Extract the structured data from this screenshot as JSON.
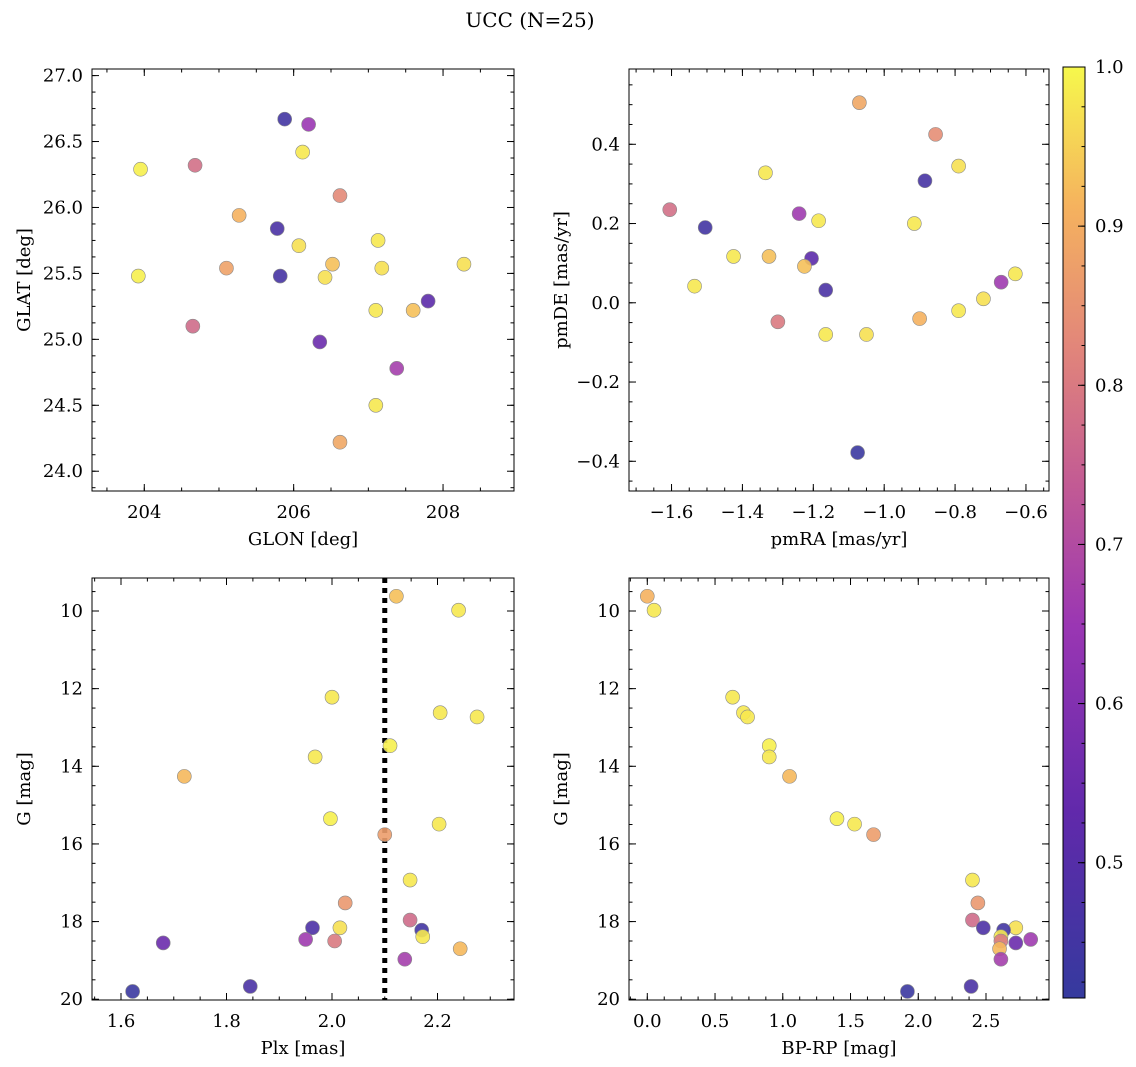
{
  "title": "UCC (N=25)",
  "colorbar": {
    "ticks": [
      0.5,
      0.6,
      0.7,
      0.8,
      0.9,
      1.0
    ],
    "ticklabels": [
      "0.5",
      "0.6",
      "0.7",
      "0.8",
      "0.9",
      "1.0"
    ],
    "range": [
      0.415,
      1.0
    ],
    "colormap": "plasma"
  },
  "chart_data": [
    {
      "type": "scatter",
      "xlabel": "GLON [deg]",
      "ylabel": "GLAT [deg]",
      "xlim": [
        203.3,
        208.95
      ],
      "ylim": [
        23.85,
        27.05
      ],
      "xticks": [
        204,
        206,
        208
      ],
      "xticklabels": [
        "204",
        "206",
        "208"
      ],
      "yticks": [
        24.0,
        24.5,
        25.0,
        25.5,
        26.0,
        26.5,
        27.0
      ],
      "yticklabels": [
        "24.0",
        "24.5",
        "25.0",
        "25.5",
        "26.0",
        "26.5",
        "27.0"
      ],
      "points": [
        {
          "x": 205.88,
          "y": 26.67,
          "c": 0.45
        },
        {
          "x": 206.2,
          "y": 26.63,
          "c": 0.65
        },
        {
          "x": 203.95,
          "y": 26.29,
          "c": 0.99
        },
        {
          "x": 204.68,
          "y": 26.32,
          "c": 0.78
        },
        {
          "x": 206.12,
          "y": 26.42,
          "c": 0.98
        },
        {
          "x": 206.62,
          "y": 26.09,
          "c": 0.83
        },
        {
          "x": 205.27,
          "y": 25.94,
          "c": 0.91
        },
        {
          "x": 205.78,
          "y": 25.84,
          "c": 0.47
        },
        {
          "x": 206.07,
          "y": 25.71,
          "c": 0.97
        },
        {
          "x": 207.13,
          "y": 25.75,
          "c": 0.98
        },
        {
          "x": 203.92,
          "y": 25.48,
          "c": 0.99
        },
        {
          "x": 205.1,
          "y": 25.54,
          "c": 0.88
        },
        {
          "x": 205.82,
          "y": 25.48,
          "c": 0.46
        },
        {
          "x": 206.42,
          "y": 25.47,
          "c": 0.97
        },
        {
          "x": 206.52,
          "y": 25.57,
          "c": 0.93
        },
        {
          "x": 207.18,
          "y": 25.54,
          "c": 0.97
        },
        {
          "x": 208.28,
          "y": 25.57,
          "c": 0.97
        },
        {
          "x": 207.8,
          "y": 25.29,
          "c": 0.52
        },
        {
          "x": 207.1,
          "y": 25.22,
          "c": 0.98
        },
        {
          "x": 207.6,
          "y": 25.22,
          "c": 0.93
        },
        {
          "x": 204.65,
          "y": 25.1,
          "c": 0.77
        },
        {
          "x": 206.35,
          "y": 24.98,
          "c": 0.55
        },
        {
          "x": 207.38,
          "y": 24.78,
          "c": 0.67
        },
        {
          "x": 207.1,
          "y": 24.5,
          "c": 0.98
        },
        {
          "x": 206.62,
          "y": 24.22,
          "c": 0.89
        }
      ]
    },
    {
      "type": "scatter",
      "xlabel": "pmRA [mas/yr]",
      "ylabel": "pmDE [mas/yr]",
      "xlim": [
        -1.72,
        -0.535
      ],
      "ylim": [
        -0.475,
        0.59
      ],
      "xticks": [
        -1.6,
        -1.4,
        -1.2,
        -1.0,
        -0.8,
        -0.6
      ],
      "xticklabels": [
        "−1.6",
        "−1.4",
        "−1.2",
        "−1.0",
        "−0.8",
        "−0.6"
      ],
      "yticks": [
        -0.4,
        -0.2,
        0.0,
        0.2,
        0.4
      ],
      "yticklabels": [
        "−0.4",
        "−0.2",
        "0.0",
        "0.2",
        "0.4"
      ],
      "points": [
        {
          "x": -1.07,
          "y": 0.505,
          "c": 0.89
        },
        {
          "x": -0.855,
          "y": 0.425,
          "c": 0.84
        },
        {
          "x": -1.335,
          "y": 0.328,
          "c": 0.98
        },
        {
          "x": -0.79,
          "y": 0.345,
          "c": 0.97
        },
        {
          "x": -0.885,
          "y": 0.308,
          "c": 0.46
        },
        {
          "x": -1.605,
          "y": 0.235,
          "c": 0.78
        },
        {
          "x": -1.505,
          "y": 0.19,
          "c": 0.45
        },
        {
          "x": -1.24,
          "y": 0.225,
          "c": 0.66
        },
        {
          "x": -1.185,
          "y": 0.207,
          "c": 0.98
        },
        {
          "x": -0.915,
          "y": 0.2,
          "c": 0.98
        },
        {
          "x": -1.425,
          "y": 0.117,
          "c": 0.98
        },
        {
          "x": -1.325,
          "y": 0.117,
          "c": 0.93
        },
        {
          "x": -1.205,
          "y": 0.112,
          "c": 0.52
        },
        {
          "x": -1.225,
          "y": 0.092,
          "c": 0.93
        },
        {
          "x": -1.535,
          "y": 0.042,
          "c": 0.98
        },
        {
          "x": -1.165,
          "y": 0.032,
          "c": 0.47
        },
        {
          "x": -0.67,
          "y": 0.052,
          "c": 0.66
        },
        {
          "x": -0.63,
          "y": 0.073,
          "c": 0.98
        },
        {
          "x": -0.72,
          "y": 0.01,
          "c": 0.97
        },
        {
          "x": -0.79,
          "y": -0.02,
          "c": 0.98
        },
        {
          "x": -1.3,
          "y": -0.048,
          "c": 0.8
        },
        {
          "x": -0.9,
          "y": -0.04,
          "c": 0.91
        },
        {
          "x": -1.165,
          "y": -0.08,
          "c": 0.98
        },
        {
          "x": -1.05,
          "y": -0.08,
          "c": 0.97
        },
        {
          "x": -1.075,
          "y": -0.378,
          "c": 0.43
        }
      ]
    },
    {
      "type": "scatter",
      "xlabel": "Plx [mas]",
      "ylabel": "G [mag]",
      "xlim": [
        1.545,
        2.345
      ],
      "ylim": [
        20.02,
        9.15
      ],
      "yinverted": true,
      "vline": 2.1,
      "xticks": [
        1.6,
        1.8,
        2.0,
        2.2
      ],
      "xticklabels": [
        "1.6",
        "1.8",
        "2.0",
        "2.2"
      ],
      "yticks": [
        10,
        12,
        14,
        16,
        18,
        20
      ],
      "yticklabels": [
        "10",
        "12",
        "14",
        "16",
        "18",
        "20"
      ],
      "points": [
        {
          "x": 2.122,
          "y": 9.62,
          "c": 0.93
        },
        {
          "x": 2.24,
          "y": 9.98,
          "c": 0.98
        },
        {
          "x": 2.0,
          "y": 12.22,
          "c": 0.98
        },
        {
          "x": 2.205,
          "y": 12.62,
          "c": 0.98
        },
        {
          "x": 2.275,
          "y": 12.73,
          "c": 0.98
        },
        {
          "x": 2.11,
          "y": 13.47,
          "c": 0.99
        },
        {
          "x": 1.968,
          "y": 13.76,
          "c": 0.98
        },
        {
          "x": 1.72,
          "y": 14.26,
          "c": 0.92
        },
        {
          "x": 1.997,
          "y": 15.35,
          "c": 0.99
        },
        {
          "x": 2.203,
          "y": 15.49,
          "c": 0.98
        },
        {
          "x": 2.1,
          "y": 15.76,
          "c": 0.87
        },
        {
          "x": 2.148,
          "y": 16.93,
          "c": 0.98
        },
        {
          "x": 2.025,
          "y": 17.52,
          "c": 0.86
        },
        {
          "x": 2.148,
          "y": 17.96,
          "c": 0.77
        },
        {
          "x": 1.963,
          "y": 18.16,
          "c": 0.48
        },
        {
          "x": 2.015,
          "y": 18.16,
          "c": 0.97
        },
        {
          "x": 2.17,
          "y": 18.22,
          "c": 0.45
        },
        {
          "x": 2.172,
          "y": 18.39,
          "c": 0.98
        },
        {
          "x": 1.95,
          "y": 18.46,
          "c": 0.66
        },
        {
          "x": 2.005,
          "y": 18.5,
          "c": 0.8
        },
        {
          "x": 1.68,
          "y": 18.55,
          "c": 0.55
        },
        {
          "x": 2.243,
          "y": 18.7,
          "c": 0.92
        },
        {
          "x": 2.138,
          "y": 18.97,
          "c": 0.67
        },
        {
          "x": 1.845,
          "y": 19.67,
          "c": 0.47
        },
        {
          "x": 1.622,
          "y": 19.8,
          "c": 0.43
        }
      ]
    },
    {
      "type": "scatter",
      "xlabel": "BP-RP [mag]",
      "ylabel": "G [mag]",
      "xlim": [
        -0.135,
        2.965
      ],
      "ylim": [
        20.02,
        9.15
      ],
      "yinverted": true,
      "xticks": [
        0.0,
        0.5,
        1.0,
        1.5,
        2.0,
        2.5
      ],
      "xticklabels": [
        "0.0",
        "0.5",
        "1.0",
        "1.5",
        "2.0",
        "2.5"
      ],
      "yticks": [
        10,
        12,
        14,
        16,
        18,
        20
      ],
      "yticklabels": [
        "10",
        "12",
        "14",
        "16",
        "18",
        "20"
      ],
      "points": [
        {
          "x": 0.0,
          "y": 9.62,
          "c": 0.91
        },
        {
          "x": 0.05,
          "y": 9.98,
          "c": 0.98
        },
        {
          "x": 0.63,
          "y": 12.22,
          "c": 0.98
        },
        {
          "x": 0.71,
          "y": 12.62,
          "c": 0.98
        },
        {
          "x": 0.74,
          "y": 12.73,
          "c": 0.98
        },
        {
          "x": 0.9,
          "y": 13.47,
          "c": 0.99
        },
        {
          "x": 0.9,
          "y": 13.76,
          "c": 0.98
        },
        {
          "x": 1.05,
          "y": 14.26,
          "c": 0.92
        },
        {
          "x": 1.4,
          "y": 15.35,
          "c": 0.99
        },
        {
          "x": 1.53,
          "y": 15.49,
          "c": 0.98
        },
        {
          "x": 1.67,
          "y": 15.76,
          "c": 0.87
        },
        {
          "x": 2.4,
          "y": 16.93,
          "c": 0.98
        },
        {
          "x": 2.44,
          "y": 17.52,
          "c": 0.86
        },
        {
          "x": 2.4,
          "y": 17.96,
          "c": 0.77
        },
        {
          "x": 2.48,
          "y": 18.16,
          "c": 0.48
        },
        {
          "x": 2.72,
          "y": 18.16,
          "c": 0.97
        },
        {
          "x": 2.63,
          "y": 18.22,
          "c": 0.45
        },
        {
          "x": 2.61,
          "y": 18.39,
          "c": 0.98
        },
        {
          "x": 2.83,
          "y": 18.46,
          "c": 0.66
        },
        {
          "x": 2.61,
          "y": 18.5,
          "c": 0.8
        },
        {
          "x": 2.72,
          "y": 18.55,
          "c": 0.55
        },
        {
          "x": 2.6,
          "y": 18.7,
          "c": 0.92
        },
        {
          "x": 2.61,
          "y": 18.97,
          "c": 0.67
        },
        {
          "x": 2.39,
          "y": 19.67,
          "c": 0.47
        },
        {
          "x": 1.92,
          "y": 19.8,
          "c": 0.43
        }
      ]
    }
  ]
}
